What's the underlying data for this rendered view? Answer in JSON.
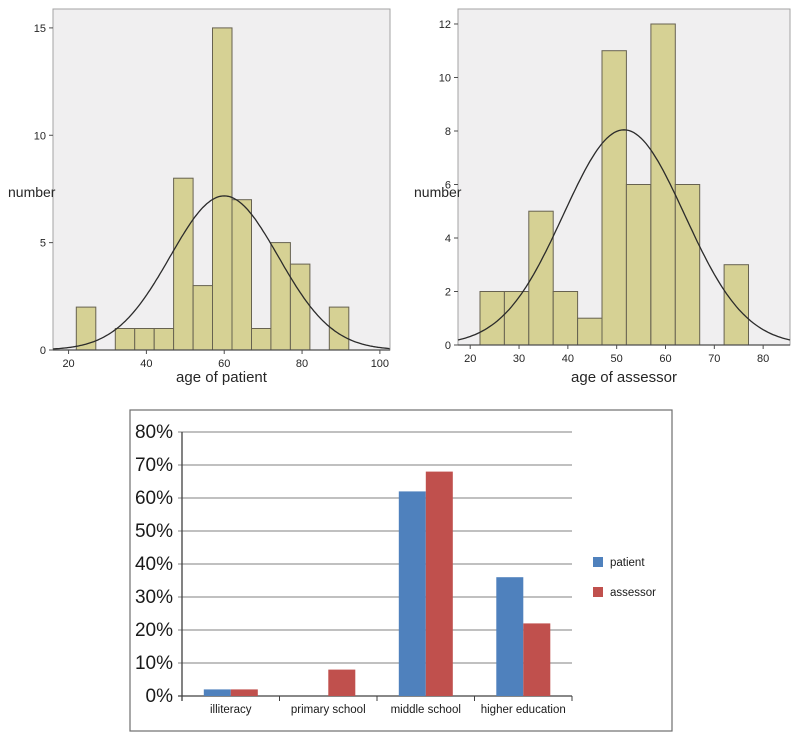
{
  "chart_data": [
    {
      "id": "patient_histogram",
      "type": "bar",
      "subtype": "histogram",
      "xlabel": "age of patient",
      "ylabel": "number",
      "x_ticks": [
        20,
        40,
        60,
        80,
        100
      ],
      "y_ticks": [
        0,
        5,
        10,
        15
      ],
      "x_range": [
        16,
        102.6
      ],
      "ylim": [
        0,
        15.88
      ],
      "grid": false,
      "bin_width": 5,
      "bins": [
        {
          "start": 22,
          "count": 2
        },
        {
          "start": 32,
          "count": 1
        },
        {
          "start": 37,
          "count": 1
        },
        {
          "start": 42,
          "count": 1
        },
        {
          "start": 47,
          "count": 8
        },
        {
          "start": 52,
          "count": 3
        },
        {
          "start": 57,
          "count": 15
        },
        {
          "start": 62,
          "count": 7
        },
        {
          "start": 67,
          "count": 1
        },
        {
          "start": 72,
          "count": 5
        },
        {
          "start": 77,
          "count": 4
        },
        {
          "start": 87,
          "count": 2
        }
      ],
      "normal_curve": {
        "mean": 60,
        "sd": 13.9,
        "n": 50
      },
      "colors": {
        "bar_fill": "#d6d194",
        "bar_stroke": "#676250",
        "plot_bg": "#f0eff0",
        "frame": "#a3a3a3",
        "axis": "#4d4d4d",
        "curve": "#2b2b2b",
        "text": "#262626"
      }
    },
    {
      "id": "assessor_histogram",
      "type": "bar",
      "subtype": "histogram",
      "xlabel": "age of assessor",
      "ylabel": "number",
      "x_ticks": [
        20,
        30,
        40,
        50,
        60,
        70,
        80
      ],
      "y_ticks": [
        0,
        2,
        4,
        6,
        8,
        10,
        12
      ],
      "x_range": [
        17.5,
        85.5
      ],
      "ylim": [
        0,
        12.56
      ],
      "grid": false,
      "bin_width": 5,
      "bins": [
        {
          "start": 22,
          "count": 2
        },
        {
          "start": 27,
          "count": 2
        },
        {
          "start": 32,
          "count": 5
        },
        {
          "start": 37,
          "count": 2
        },
        {
          "start": 42,
          "count": 1
        },
        {
          "start": 47,
          "count": 11
        },
        {
          "start": 52,
          "count": 6
        },
        {
          "start": 57,
          "count": 12
        },
        {
          "start": 62,
          "count": 6
        },
        {
          "start": 72,
          "count": 3
        }
      ],
      "normal_curve": {
        "mean": 51.5,
        "sd": 12.4,
        "n": 50
      },
      "colors": {
        "bar_fill": "#d6d194",
        "bar_stroke": "#676250",
        "plot_bg": "#f0eff0",
        "frame": "#a3a3a3",
        "axis": "#4d4d4d",
        "curve": "#2b2b2b",
        "text": "#262626"
      }
    },
    {
      "id": "education_bar_chart",
      "type": "bar",
      "categories": [
        "illiteracy",
        "primary school",
        "middle school",
        "higher education"
      ],
      "series": [
        {
          "name": "patient",
          "color": "#4f81bd",
          "values": [
            2,
            0,
            62,
            36
          ]
        },
        {
          "name": "assessor",
          "color": "#c0504d",
          "values": [
            2,
            8,
            68,
            22
          ]
        }
      ],
      "y_ticks": [
        0,
        10,
        20,
        30,
        40,
        50,
        60,
        70,
        80
      ],
      "y_tick_suffix": "%",
      "ylim": [
        0,
        80
      ],
      "grid": true,
      "legend_position": "right",
      "colors": {
        "grid": "#808080",
        "axis": "#404040",
        "border": "#6e6e6e",
        "text": "#1a1a1a",
        "background": "#ffffff"
      }
    }
  ]
}
